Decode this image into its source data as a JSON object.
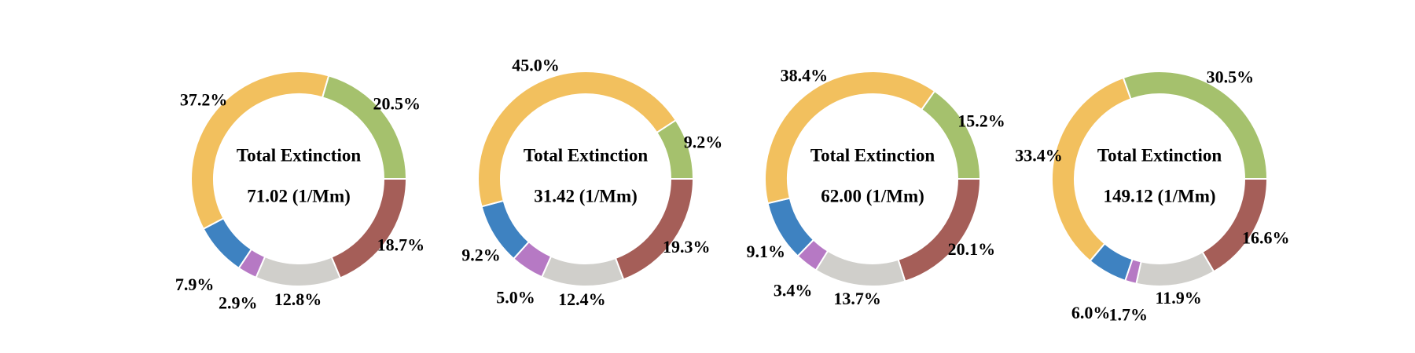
{
  "colors": {
    "slice_order": [
      "red",
      "gray",
      "purple",
      "blue",
      "yellow",
      "green"
    ],
    "red": "#A55E58",
    "gray": "#D0CFCB",
    "purple": "#B679C4",
    "blue": "#3E82C1",
    "yellow": "#F2C05E",
    "green": "#A5C16D"
  },
  "chart_data": [
    {
      "type": "pie",
      "style": "donut",
      "center_title": "Total Extinction",
      "center_value": "71.02 (1/Mm)",
      "labels": [
        "18.7%",
        "12.8%",
        "2.9%",
        "7.9%",
        "37.2%",
        "20.5%"
      ],
      "values": [
        18.7,
        12.8,
        2.9,
        7.9,
        37.2,
        20.5
      ]
    },
    {
      "type": "pie",
      "style": "donut",
      "center_title": "Total Extinction",
      "center_value": "31.42 (1/Mm)",
      "labels": [
        "19.3%",
        "12.4%",
        "5.0%",
        "9.2%",
        "45.0%",
        "9.2%"
      ],
      "values": [
        19.3,
        12.4,
        5.0,
        9.2,
        45.0,
        9.2
      ]
    },
    {
      "type": "pie",
      "style": "donut",
      "center_title": "Total Extinction",
      "center_value": "62.00 (1/Mm)",
      "labels": [
        "20.1%",
        "13.7%",
        "3.4%",
        "9.1%",
        "38.4%",
        "15.2%"
      ],
      "values": [
        20.1,
        13.7,
        3.4,
        9.1,
        38.4,
        15.2
      ]
    },
    {
      "type": "pie",
      "style": "donut",
      "center_title": "Total Extinction",
      "center_value": "149.12 (1/Mm)",
      "labels": [
        "16.6%",
        "11.9%",
        "1.7%",
        "6.0%",
        "33.4%",
        "30.5%"
      ],
      "values": [
        16.6,
        11.9,
        1.7,
        6.0,
        33.4,
        30.5
      ]
    }
  ]
}
